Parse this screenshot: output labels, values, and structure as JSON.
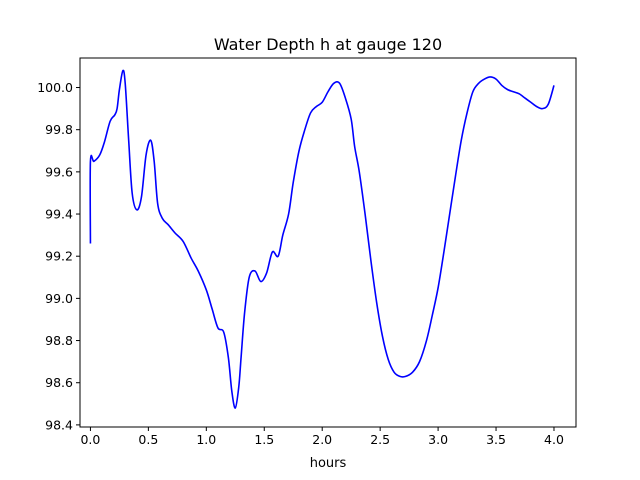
{
  "chart_data": {
    "type": "line",
    "title": "Water Depth h at gauge 120",
    "xlabel": "hours",
    "ylabel": "",
    "xlim": [
      -0.09,
      4.19
    ],
    "ylim": [
      98.39,
      100.14
    ],
    "xticks": [
      "0.0",
      "0.5",
      "1.0",
      "1.5",
      "2.0",
      "2.5",
      "3.0",
      "3.5",
      "4.0"
    ],
    "xtick_values": [
      0,
      0.5,
      1.0,
      1.5,
      2.0,
      2.5,
      3.0,
      3.5,
      4.0
    ],
    "yticks": [
      "98.4",
      "98.6",
      "98.8",
      "99.0",
      "99.2",
      "99.4",
      "99.6",
      "99.8",
      "100.0"
    ],
    "ytick_values": [
      98.4,
      98.6,
      98.8,
      99.0,
      99.2,
      99.4,
      99.6,
      99.8,
      100.0
    ],
    "grid": false,
    "series": [
      {
        "color": "#0000ff",
        "x": [
          0.0,
          0.0,
          0.03,
          0.08,
          0.12,
          0.17,
          0.21,
          0.23,
          0.25,
          0.28,
          0.3,
          0.33,
          0.36,
          0.4,
          0.44,
          0.48,
          0.52,
          0.55,
          0.58,
          0.62,
          0.67,
          0.73,
          0.8,
          0.87,
          0.93,
          1.0,
          1.05,
          1.1,
          1.15,
          1.19,
          1.22,
          1.25,
          1.28,
          1.3,
          1.33,
          1.37,
          1.42,
          1.47,
          1.52,
          1.57,
          1.62,
          1.66,
          1.71,
          1.75,
          1.8,
          1.85,
          1.9,
          1.95,
          2.0,
          2.05,
          2.1,
          2.15,
          2.2,
          2.25,
          2.28,
          2.32,
          2.37,
          2.42,
          2.47,
          2.52,
          2.57,
          2.62,
          2.67,
          2.72,
          2.78,
          2.84,
          2.9,
          2.95,
          3.0,
          3.05,
          3.1,
          3.15,
          3.2,
          3.25,
          3.3,
          3.35,
          3.4,
          3.45,
          3.5,
          3.55,
          3.6,
          3.65,
          3.7,
          3.75,
          3.8,
          3.85,
          3.9,
          3.95,
          4.0
        ],
        "y": [
          99.26,
          99.65,
          99.65,
          99.68,
          99.74,
          99.84,
          99.87,
          99.9,
          99.99,
          100.08,
          100.02,
          99.75,
          99.5,
          99.42,
          99.48,
          99.68,
          99.75,
          99.65,
          99.45,
          99.38,
          99.35,
          99.31,
          99.27,
          99.19,
          99.13,
          99.04,
          98.95,
          98.86,
          98.84,
          98.72,
          98.56,
          98.48,
          98.58,
          98.72,
          98.93,
          99.1,
          99.13,
          99.08,
          99.12,
          99.22,
          99.2,
          99.3,
          99.4,
          99.55,
          99.7,
          99.8,
          99.88,
          99.91,
          99.93,
          99.98,
          100.02,
          100.02,
          99.95,
          99.85,
          99.72,
          99.6,
          99.4,
          99.18,
          98.98,
          98.82,
          98.71,
          98.65,
          98.63,
          98.63,
          98.65,
          98.7,
          98.8,
          98.92,
          99.05,
          99.22,
          99.4,
          99.58,
          99.75,
          99.88,
          99.98,
          100.02,
          100.04,
          100.05,
          100.04,
          100.01,
          99.99,
          99.98,
          99.97,
          99.95,
          99.93,
          99.91,
          99.9,
          99.92,
          100.01
        ]
      }
    ]
  }
}
